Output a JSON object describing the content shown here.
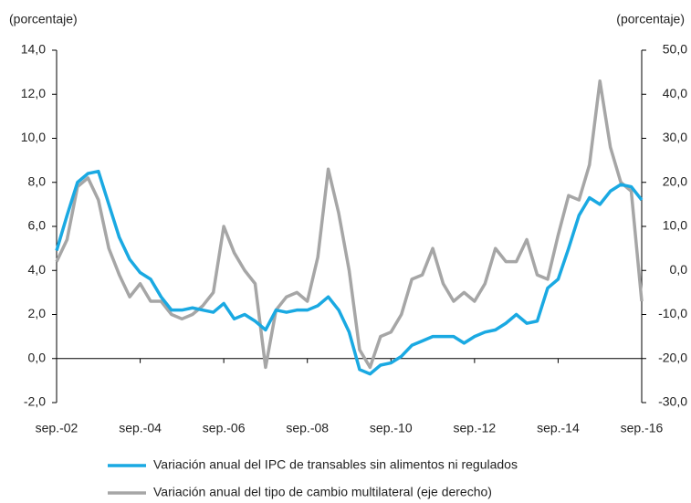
{
  "chart_data": {
    "type": "line",
    "ylabel": "(porcentaje)",
    "y2label": "(porcentaje)",
    "categories": [
      "sep.-02",
      null,
      null,
      null,
      null,
      null,
      null,
      null,
      "sep.-04",
      null,
      null,
      null,
      null,
      null,
      null,
      null,
      "sep.-06",
      null,
      null,
      null,
      null,
      null,
      null,
      null,
      "sep.-08",
      null,
      null,
      null,
      null,
      null,
      null,
      null,
      "sep.-10",
      null,
      null,
      null,
      null,
      null,
      null,
      null,
      "sep.-12",
      null,
      null,
      null,
      null,
      null,
      null,
      null,
      "sep.-14",
      null,
      null,
      null,
      null,
      null,
      null,
      null,
      "sep.-16"
    ],
    "series": [
      {
        "name": "Variación anual del IPC de transables sin alimentos ni regulados",
        "color": "#1aa9e2",
        "values": [
          4.9,
          6.5,
          8.0,
          8.4,
          8.5,
          7.0,
          5.5,
          4.5,
          3.9,
          3.6,
          2.8,
          2.2,
          2.2,
          2.3,
          2.2,
          2.1,
          2.5,
          1.8,
          2.0,
          1.7,
          1.3,
          2.2,
          2.1,
          2.2,
          2.2,
          2.4,
          2.8,
          2.2,
          1.2,
          -0.5,
          -0.7,
          -0.3,
          -0.2,
          0.1,
          0.6,
          0.8,
          1.0,
          1.0,
          1.0,
          0.7,
          1.0,
          1.2,
          1.3,
          1.6,
          2.0,
          1.6,
          1.7,
          3.2,
          3.6,
          5.0,
          6.5,
          7.3,
          7.0,
          7.6,
          7.9,
          7.8,
          7.2
        ]
      },
      {
        "name": "Variación anual del tipo de cambio multilateral (eje derecho)",
        "color": "#a6a6a6",
        "axis": "y2",
        "values": [
          2,
          7,
          19,
          21,
          16,
          5,
          -1,
          -6,
          -3,
          -7,
          -7,
          -10,
          -11,
          -10,
          -8,
          -5,
          10,
          4,
          0,
          -3,
          -22,
          -9,
          -6,
          -5,
          -7,
          3,
          23,
          13,
          0,
          -18,
          -22,
          -15,
          -14,
          -10,
          -2,
          -1,
          5,
          -3,
          -7,
          -5,
          -7,
          -3,
          5,
          2,
          2,
          7,
          -1,
          -2,
          8,
          17,
          16,
          24,
          43,
          28,
          20,
          18,
          -7
        ]
      }
    ],
    "ylim": [
      -2,
      14
    ],
    "yticks": [
      {
        "value": -2,
        "label": "-2,0"
      },
      {
        "value": 0,
        "label": "0,0"
      },
      {
        "value": 2,
        "label": "2,0"
      },
      {
        "value": 4,
        "label": "4,0"
      },
      {
        "value": 6,
        "label": "6,0"
      },
      {
        "value": 8,
        "label": "8,0"
      },
      {
        "value": 10,
        "label": "10,0"
      },
      {
        "value": 12,
        "label": "12,0"
      },
      {
        "value": 14,
        "label": "14,0"
      }
    ],
    "y2lim": [
      -30,
      50
    ],
    "y2ticks": [
      {
        "value": -30,
        "label": "-30,0"
      },
      {
        "value": -20,
        "label": "-20,0"
      },
      {
        "value": -10,
        "label": "-10,0"
      },
      {
        "value": 0,
        "label": "0,0"
      },
      {
        "value": 10,
        "label": "10,0"
      },
      {
        "value": 20,
        "label": "20,0"
      },
      {
        "value": 30,
        "label": "30,0"
      },
      {
        "value": 40,
        "label": "40,0"
      },
      {
        "value": 50,
        "label": "50,0"
      }
    ],
    "legend": "bottom"
  }
}
